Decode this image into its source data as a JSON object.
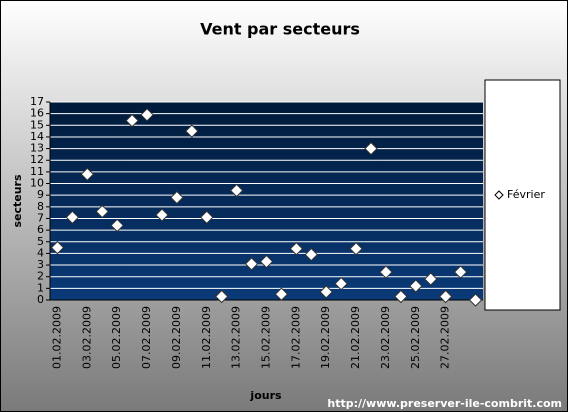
{
  "chart_data": {
    "type": "scatter",
    "title": "Vent par secteurs",
    "x_label": "jours",
    "y_label": "secteurs",
    "footer": "http://www.preserver-ile-combrit.com",
    "categories": [
      "01.02.2009",
      null,
      "03.02.2009",
      null,
      "05.02.2009",
      null,
      "07.02.2009",
      null,
      "09.02.2009",
      null,
      "11.02.2009",
      null,
      "13.02.2009",
      null,
      "15.02.2009",
      null,
      "17.02.2009",
      null,
      "19.02.2009",
      null,
      "21.02.2009",
      null,
      "23.02.2009",
      null,
      "25.02.2009",
      null,
      "27.02.2009",
      null,
      null
    ],
    "series": [
      {
        "name": "Février",
        "color": "#ffffff",
        "values": [
          4.5,
          7.1,
          10.8,
          7.6,
          6.4,
          15.4,
          15.9,
          7.3,
          8.8,
          14.5,
          7.1,
          0.3,
          9.4,
          3.1,
          3.3,
          0.5,
          4.4,
          3.9,
          0.7,
          1.4,
          4.4,
          13.0,
          2.4,
          0.3,
          1.2,
          1.8,
          0.3,
          2.4,
          0
        ]
      }
    ],
    "ylim": [
      0,
      17
    ],
    "yticks": [
      0,
      1,
      2,
      3,
      4,
      5,
      6,
      7,
      8,
      9,
      10,
      11,
      12,
      13,
      14,
      15,
      16,
      17
    ],
    "grid": true,
    "legend": "right"
  }
}
